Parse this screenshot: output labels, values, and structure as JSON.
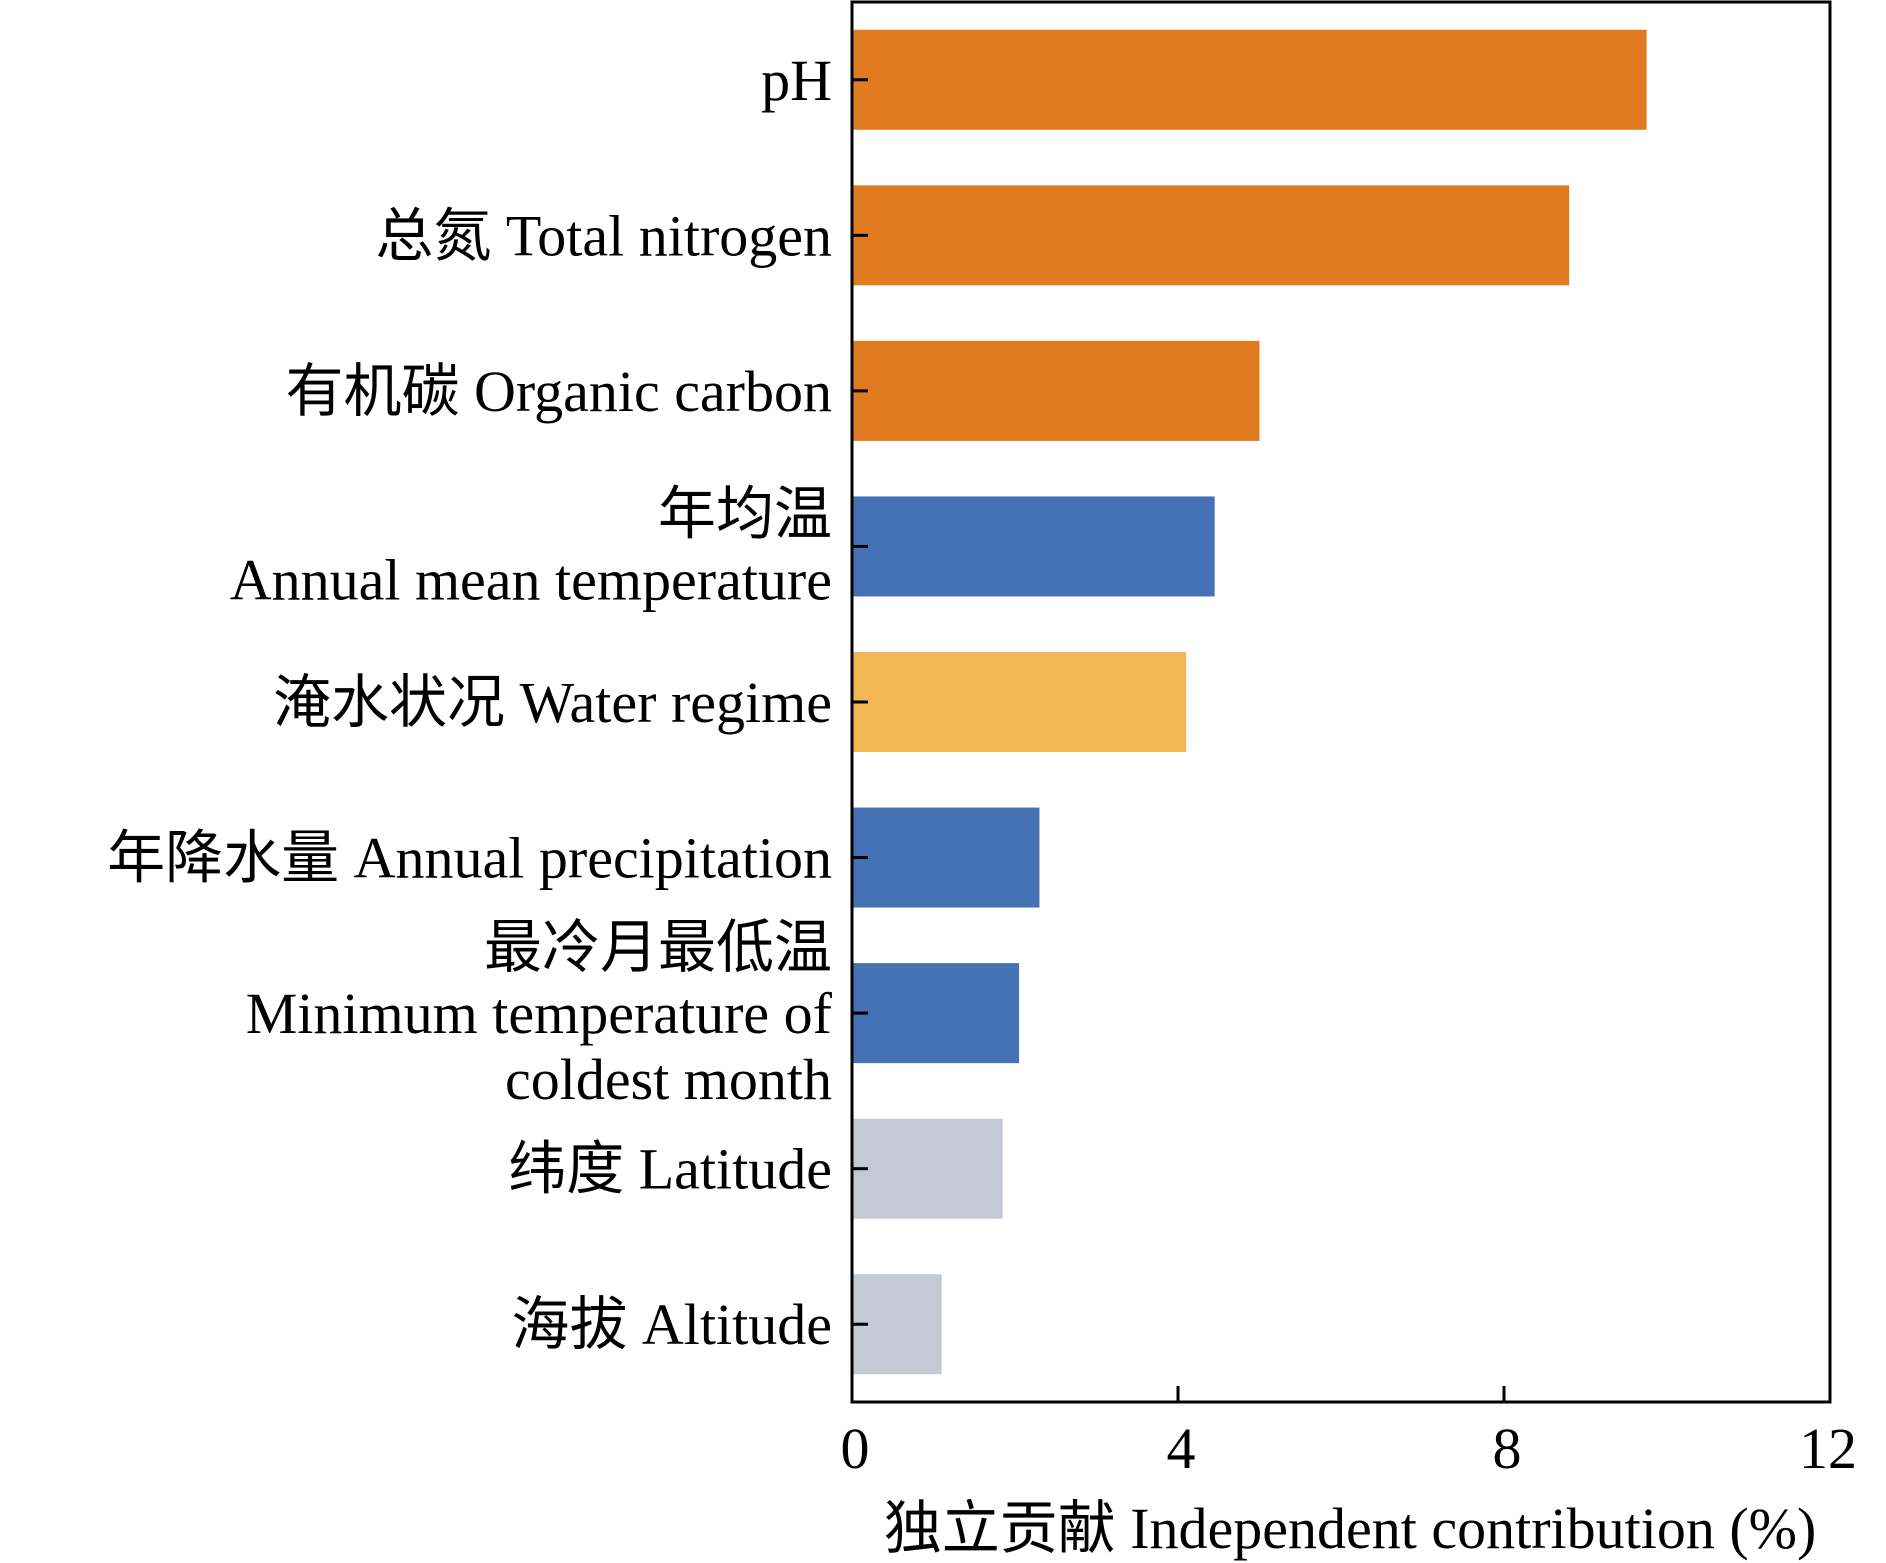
{
  "chart_data": {
    "type": "bar",
    "orientation": "horizontal",
    "xlabel": "独立贡献 Independent contribution (%)",
    "xlim": [
      0,
      12
    ],
    "xticks": [
      "0",
      "4",
      "8",
      "12"
    ],
    "grid": false,
    "legend": "none",
    "categories": [
      {
        "label": [
          "pH"
        ],
        "value": 9.75,
        "color": "#E07B20"
      },
      {
        "label": [
          "总氮 Total nitrogen"
        ],
        "value": 8.8,
        "color": "#E07B20"
      },
      {
        "label": [
          "有机碳 Organic carbon"
        ],
        "value": 5.0,
        "color": "#E07B20"
      },
      {
        "label": [
          "年均温",
          "Annual mean temperature"
        ],
        "value": 4.45,
        "color": "#4472B4"
      },
      {
        "label": [
          "淹水状况 Water regime"
        ],
        "value": 4.1,
        "color": "#F0B752"
      },
      {
        "label": [
          "年降水量 Annual precipitation"
        ],
        "value": 2.3,
        "color": "#4472B4"
      },
      {
        "label": [
          "最冷月最低温",
          "Minimum temperature of",
          "coldest month"
        ],
        "value": 2.05,
        "color": "#4472B4"
      },
      {
        "label": [
          "纬度 Latitude"
        ],
        "value": 1.85,
        "color": "#C3CAD3"
      },
      {
        "label": [
          "海拔 Altitude"
        ],
        "value": 1.1,
        "color": "#C3CAD3"
      }
    ]
  }
}
